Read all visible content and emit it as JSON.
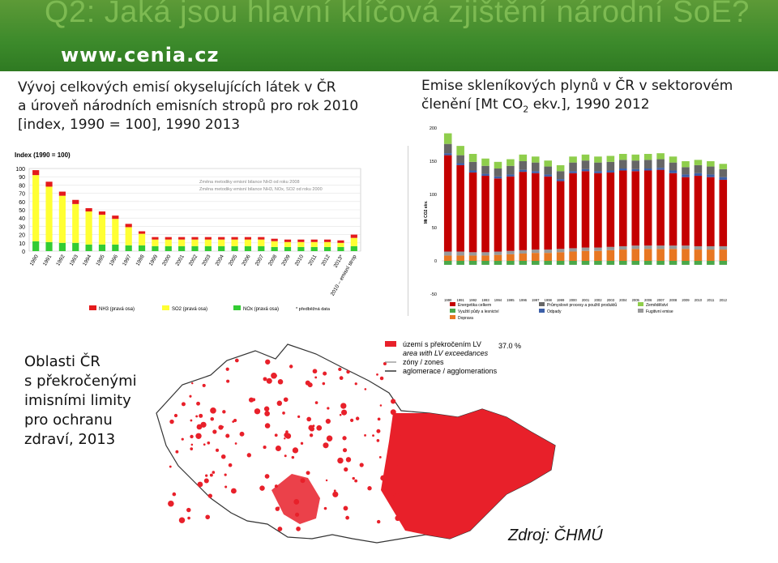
{
  "header": {
    "title": "Q2: Jaká jsou hlavní klíčová zjištění národní SoE?",
    "logo_text": "www.cenia.cz"
  },
  "left_chart_title": [
    "Vývoj celkových emisí okyselujících látek v ČR",
    "a úroveň národních emisních stropů pro rok 2010",
    "[index, 1990 = 100], 1990 2013"
  ],
  "right_chart_title_line1": "Emise skleníkových plynů v ČR v sektorovém",
  "right_chart_title_line2_a": "členění [Mt CO",
  "right_chart_title_line2_sub": "2",
  "right_chart_title_line2_b": " ekv.], 1990 2012",
  "map_title": [
    "Oblasti ČR",
    "s překročenými",
    "imisními limity",
    "pro ochranu",
    "zdraví, 2013"
  ],
  "source": "Zdroj: ČHMÚ",
  "colors": {
    "nh3": "#e41a1c",
    "so2": "#ffff33",
    "nox": "#33cc33",
    "energy": "#c40000",
    "industry": "#666666",
    "agriculture": "#8fce4c",
    "land_use": "#4aa84a",
    "waste": "#3c5fa8",
    "fugitive": "#999999",
    "transport": "#e87722",
    "map_red": "#e8202a"
  },
  "chart_data": [
    {
      "type": "bar",
      "title": "Index (1990 = 100)",
      "categories": [
        "1990",
        "1991",
        "1992",
        "1993",
        "1994",
        "1995",
        "1996",
        "1997",
        "1998",
        "1999",
        "2000",
        "2001",
        "2002",
        "2003",
        "2004",
        "2005",
        "2006",
        "2007",
        "2008",
        "2009",
        "2010",
        "2011",
        "2012",
        "2013*",
        "2010 – emisní strop"
      ],
      "yticks": [
        "0",
        "10",
        "20",
        "30",
        "40",
        "50",
        "60",
        "70",
        "80",
        "90",
        "100"
      ],
      "ylim": [
        0,
        100
      ],
      "series": [
        {
          "name": "NH3 (pravá osa)",
          "values": [
            6,
            6,
            5,
            5,
            4,
            4,
            4,
            4,
            3,
            3,
            3,
            3,
            3,
            3,
            3,
            3,
            3,
            3,
            3,
            3,
            3,
            3,
            3,
            3,
            4
          ]
        },
        {
          "name": "SO2 (pravá osa)",
          "values": [
            80,
            67,
            57,
            47,
            40,
            36,
            31,
            22,
            14,
            8,
            8,
            8,
            8,
            8,
            8,
            8,
            8,
            8,
            7,
            6,
            6,
            6,
            6,
            5,
            10
          ]
        },
        {
          "name": "NOx (pravá osa)",
          "values": [
            12,
            11,
            10,
            10,
            8,
            8,
            8,
            7,
            7,
            6,
            6,
            6,
            6,
            6,
            6,
            6,
            6,
            6,
            5,
            5,
            5,
            5,
            5,
            5,
            6
          ]
        }
      ],
      "annotations": [
        "Změna metodiky emisní bilance NH3 od roku 2008",
        "Změna metodiky emisní bilance NH3, NOx, SO2 od roku 2000"
      ],
      "legend_note": "* předběžná data"
    },
    {
      "type": "bar",
      "ylabel": "Mt CO2 ekv.",
      "categories": [
        "1990",
        "1991",
        "1992",
        "1993",
        "1994",
        "1995",
        "1996",
        "1997",
        "1998",
        "1999",
        "2000",
        "2001",
        "2002",
        "2003",
        "2004",
        "2005",
        "2006",
        "2007",
        "2008",
        "2009",
        "2010",
        "2011",
        "2012"
      ],
      "yticks": [
        "-50",
        "0",
        "50",
        "100",
        "150",
        "200"
      ],
      "ylim": [
        -50,
        200
      ],
      "series": [
        {
          "name": "Energetika celkem",
          "values": [
            145,
            130,
            120,
            115,
            110,
            112,
            118,
            115,
            110,
            102,
            113,
            115,
            112,
            112,
            114,
            112,
            113,
            114,
            109,
            103,
            106,
            104,
            100
          ]
        },
        {
          "name": "Průmyslové procesy a použití produktů",
          "values": [
            14,
            12,
            13,
            12,
            12,
            13,
            13,
            13,
            12,
            12,
            13,
            13,
            13,
            13,
            13,
            13,
            13,
            13,
            12,
            11,
            12,
            12,
            12
          ]
        },
        {
          "name": "Zemědělství",
          "values": [
            16,
            14,
            12,
            11,
            10,
            10,
            10,
            9,
            9,
            9,
            9,
            9,
            9,
            9,
            9,
            9,
            9,
            9,
            9,
            9,
            8,
            8,
            8
          ]
        },
        {
          "name": "Využití půdy a lesnictví",
          "values": [
            -6,
            -6,
            -6,
            -6,
            -6,
            -6,
            -6,
            -6,
            -6,
            -6,
            -6,
            -6,
            -6,
            -6,
            -6,
            -6,
            -6,
            -6,
            -6,
            -6,
            -6,
            -6,
            -6
          ]
        },
        {
          "name": "Odpady",
          "values": [
            3,
            3,
            3,
            3,
            3,
            3,
            3,
            3,
            3,
            3,
            3,
            3,
            3,
            3,
            3,
            3,
            3,
            3,
            4,
            4,
            4,
            4,
            4
          ]
        },
        {
          "name": "Fugitivní emise",
          "values": [
            6,
            6,
            5,
            5,
            5,
            5,
            5,
            5,
            5,
            5,
            5,
            5,
            5,
            5,
            5,
            5,
            5,
            5,
            5,
            5,
            5,
            5,
            5
          ]
        },
        {
          "name": "Doprava",
          "values": [
            8,
            8,
            8,
            8,
            9,
            10,
            11,
            12,
            12,
            13,
            14,
            15,
            15,
            16,
            17,
            18,
            18,
            18,
            18,
            18,
            17,
            17,
            17
          ]
        }
      ]
    }
  ],
  "map": {
    "legend": [
      "území s překročením LV",
      "area with LV exceedances",
      "zóny / zones",
      "aglomerace / agglomerations"
    ],
    "percent": "37.0 %"
  }
}
